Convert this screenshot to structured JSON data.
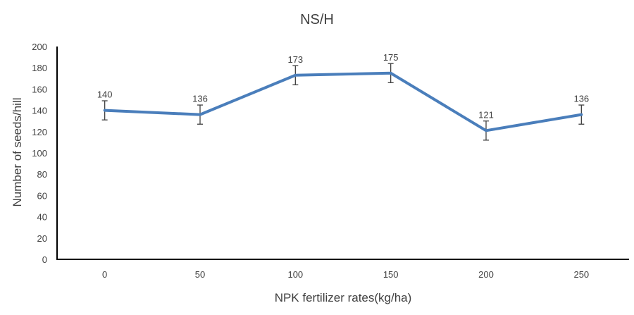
{
  "chart_data": {
    "type": "line",
    "title": "NS/H",
    "xlabel": "NPK fertilizer rates(kg/ha)",
    "ylabel": "Number of seeds/hill",
    "categories": [
      "0",
      "50",
      "100",
      "150",
      "200",
      "250"
    ],
    "series": [
      {
        "values": [
          140,
          136,
          173,
          175,
          121,
          136
        ],
        "error": [
          9,
          9,
          9,
          9,
          9,
          9
        ],
        "data_labels": [
          "140",
          "136",
          "173",
          "175",
          "121",
          "136"
        ],
        "color": "#4a7ebb"
      }
    ],
    "ylim": [
      0,
      200
    ],
    "yticks": [
      "0",
      "20",
      "40",
      "60",
      "80",
      "100",
      "120",
      "140",
      "160",
      "180",
      "200"
    ],
    "grid": false,
    "legend": "none"
  }
}
